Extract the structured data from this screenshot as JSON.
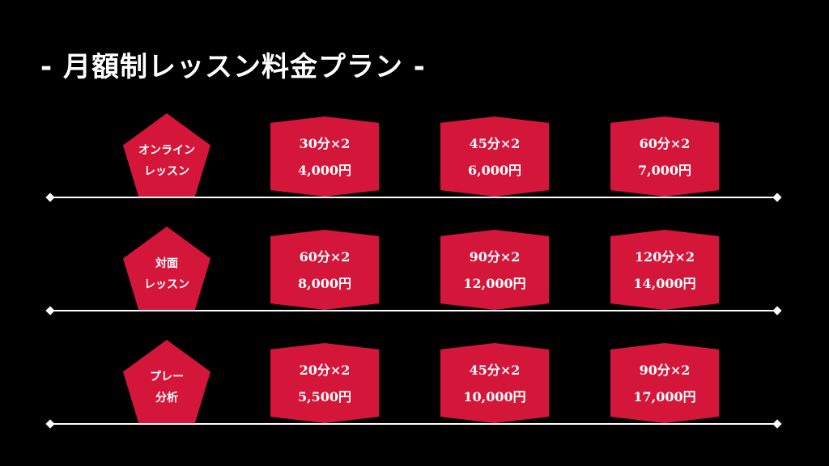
{
  "title": "- 月額制レッスン料金プラン -",
  "colors": {
    "background": "#000000",
    "accent": "#d4163a",
    "text": "#ffffff"
  },
  "rows": [
    {
      "category": [
        "オンライン",
        "レッスン"
      ],
      "plans": [
        {
          "duration": "30分×2",
          "price": "4,000円"
        },
        {
          "duration": "45分×2",
          "price": "6,000円"
        },
        {
          "duration": "60分×2",
          "price": "7,000円"
        }
      ]
    },
    {
      "category": [
        "対面",
        "レッスン"
      ],
      "plans": [
        {
          "duration": "60分×2",
          "price": "8,000円"
        },
        {
          "duration": "90分×2",
          "price": "12,000円"
        },
        {
          "duration": "120分×2",
          "price": "14,000円"
        }
      ]
    },
    {
      "category": [
        "プレー",
        "分析"
      ],
      "plans": [
        {
          "duration": "20分×2",
          "price": "5,500円"
        },
        {
          "duration": "45分×2",
          "price": "10,000円"
        },
        {
          "duration": "90分×2",
          "price": "17,000円"
        }
      ]
    }
  ]
}
